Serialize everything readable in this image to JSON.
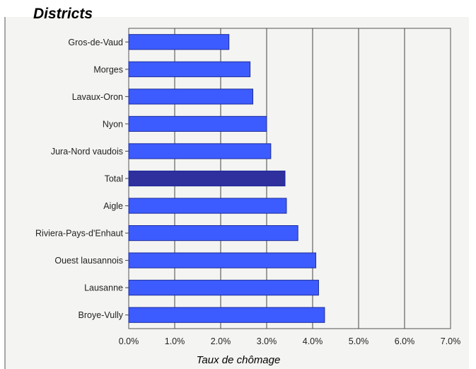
{
  "chart_data": {
    "type": "bar",
    "orientation": "horizontal",
    "title": "Districts",
    "xlabel": "Taux de chômage",
    "ylabel": "",
    "categories": [
      "Gros-de-Vaud",
      "Morges",
      "Lavaux-Oron",
      "Nyon",
      "Jura-Nord vaudois",
      "Total",
      "Aigle",
      "Riviera-Pays-d'Enhaut",
      "Ouest lausannois",
      "Lausanne",
      "Broye-Vully"
    ],
    "values": [
      2.18,
      2.64,
      2.7,
      3.0,
      3.09,
      3.4,
      3.43,
      3.68,
      4.07,
      4.13,
      4.26
    ],
    "highlight": "Total",
    "xlim": [
      0,
      7
    ],
    "xticks": [
      "0.0%",
      "1.0%",
      "2.0%",
      "3.0%",
      "4.0%",
      "5.0%",
      "6.0%",
      "7.0%"
    ],
    "grid": "vertical",
    "legend": "none",
    "colors": {
      "bar": "#3d5cff",
      "bar_stroke": "#1c2c9a",
      "highlight": "#2f2f9e",
      "plot_bg": "#f4f4f2",
      "grid": "#444444"
    }
  }
}
